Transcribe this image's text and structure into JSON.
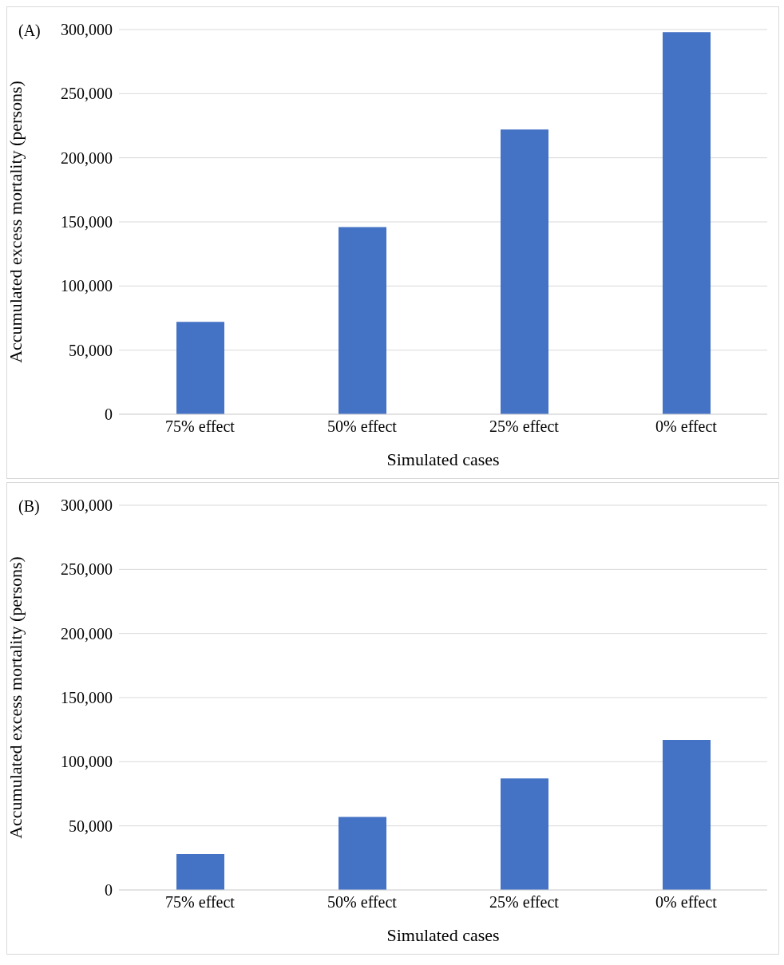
{
  "chart_data": [
    {
      "type": "bar",
      "title": "(A)",
      "xlabel": "Simulated cases",
      "ylabel": "Accumulated excess mortality (persons)",
      "categories": [
        "75% effect",
        "50% effect",
        "25% effect",
        "0% effect"
      ],
      "values": [
        72000,
        146000,
        222000,
        298000
      ],
      "color": "#4472c4",
      "ylim": [
        0,
        300000
      ],
      "yticks": [
        {
          "value": 0,
          "label": "0"
        },
        {
          "value": 50000,
          "label": "50,000"
        },
        {
          "value": 100000,
          "label": "100,000"
        },
        {
          "value": 150000,
          "label": "150,000"
        },
        {
          "value": 200000,
          "label": "200,000"
        },
        {
          "value": 250000,
          "label": "250,000"
        },
        {
          "value": 300000,
          "label": "300,000"
        }
      ],
      "grid": "y",
      "legend": false
    },
    {
      "type": "bar",
      "title": "(B)",
      "xlabel": "Simulated cases",
      "ylabel": "Accumulated excess mortality (persons)",
      "categories": [
        "75% effect",
        "50% effect",
        "25% effect",
        "0% effect"
      ],
      "values": [
        28000,
        57000,
        87000,
        117000
      ],
      "color": "#4472c4",
      "ylim": [
        0,
        300000
      ],
      "yticks": [
        {
          "value": 0,
          "label": "0"
        },
        {
          "value": 50000,
          "label": "50,000"
        },
        {
          "value": 100000,
          "label": "100,000"
        },
        {
          "value": 150000,
          "label": "150,000"
        },
        {
          "value": 200000,
          "label": "200,000"
        },
        {
          "value": 250000,
          "label": "250,000"
        },
        {
          "value": 300000,
          "label": "300,000"
        }
      ],
      "grid": "y",
      "legend": false
    }
  ]
}
